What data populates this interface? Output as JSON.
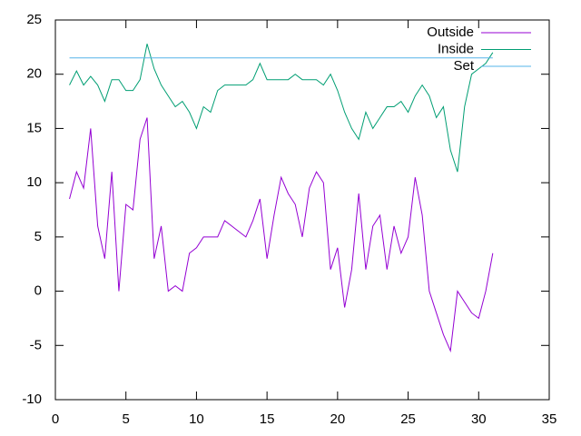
{
  "chart_data": {
    "type": "line",
    "x": [
      1,
      1.5,
      2,
      2.5,
      3,
      3.5,
      4,
      4.5,
      5,
      5.5,
      6,
      6.5,
      7,
      7.5,
      8,
      8.5,
      9,
      9.5,
      10,
      10.5,
      11,
      11.5,
      12,
      12.5,
      13,
      13.5,
      14,
      14.5,
      15,
      15.5,
      16,
      16.5,
      17,
      17.5,
      18,
      18.5,
      19,
      19.5,
      20,
      20.5,
      21,
      21.5,
      22,
      22.5,
      23,
      23.5,
      24,
      24.5,
      25,
      25.5,
      26,
      26.5,
      27,
      27.5,
      28,
      28.5,
      29,
      29.5,
      30,
      30.5,
      31
    ],
    "series": [
      {
        "name": "Outside",
        "color": "#9400d3",
        "values": [
          8.5,
          11,
          9.5,
          15,
          6,
          3,
          11,
          0,
          8,
          7.5,
          14,
          16,
          3,
          6,
          0,
          0.5,
          0,
          3.5,
          4,
          5,
          5,
          5,
          6.5,
          6,
          5.5,
          5,
          6.5,
          8.5,
          3,
          7,
          10.5,
          9,
          8,
          5,
          9.5,
          11,
          10,
          2,
          4,
          -1.5,
          2,
          9,
          2,
          6,
          7,
          2,
          6,
          3.5,
          5,
          10.5,
          7,
          0,
          -2,
          -4,
          -5.5,
          0,
          -1,
          -2,
          -2.5,
          0,
          3.5
        ]
      },
      {
        "name": "Inside",
        "color": "#009e73",
        "values": [
          19,
          20.3,
          19,
          19.8,
          19,
          17.5,
          19.5,
          19.5,
          18.5,
          18.5,
          19.5,
          22.8,
          20.5,
          19,
          18,
          17,
          17.5,
          16.5,
          15,
          17,
          16.5,
          18.5,
          19,
          19,
          19,
          19,
          19.5,
          21,
          19.5,
          19.5,
          19.5,
          19.5,
          20,
          19.5,
          19.5,
          19.5,
          19,
          20,
          18.5,
          16.5,
          15,
          14,
          16.5,
          15,
          16,
          17,
          17,
          17.5,
          16.5,
          18,
          19,
          18,
          16,
          17,
          13,
          11,
          17,
          20,
          20.5,
          21,
          22
        ]
      },
      {
        "name": "Set",
        "color": "#56b4e9",
        "values": [
          21.5,
          21.5,
          21.5,
          21.5,
          21.5,
          21.5,
          21.5,
          21.5,
          21.5,
          21.5,
          21.5,
          21.5,
          21.5,
          21.5,
          21.5,
          21.5,
          21.5,
          21.5,
          21.5,
          21.5,
          21.5,
          21.5,
          21.5,
          21.5,
          21.5,
          21.5,
          21.5,
          21.5,
          21.5,
          21.5,
          21.5,
          21.5,
          21.5,
          21.5,
          21.5,
          21.5,
          21.5,
          21.5,
          21.5,
          21.5,
          21.5,
          21.5,
          21.5,
          21.5,
          21.5,
          21.5,
          21.5,
          21.5,
          21.5,
          21.5,
          21.5,
          21.5,
          21.5,
          21.5,
          21.5,
          21.5,
          21.5,
          21.5,
          21.5,
          21.5,
          21.5
        ]
      }
    ],
    "xlim": [
      0,
      35
    ],
    "xticks": [
      0,
      5,
      10,
      15,
      20,
      25,
      30,
      35
    ],
    "ylim": [
      -10,
      25
    ],
    "yticks": [
      -10,
      -5,
      0,
      5,
      10,
      15,
      20,
      25
    ],
    "grid": false,
    "legend": "top-right"
  }
}
